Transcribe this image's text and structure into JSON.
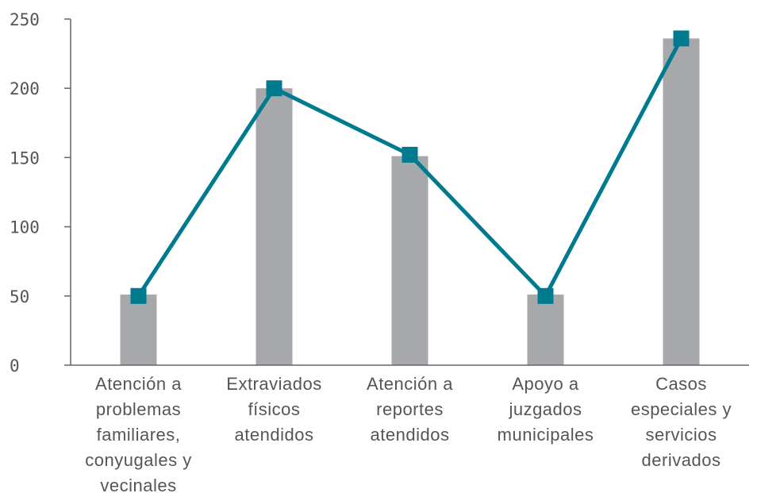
{
  "chart_data": {
    "type": "bar",
    "title": "",
    "xlabel": "",
    "ylabel": "",
    "ylim": [
      0,
      250
    ],
    "yticks": [
      "0",
      "50",
      "100",
      "150",
      "200",
      "250"
    ],
    "categories": [
      [
        "Atención a",
        "problemas",
        "familiares,",
        "conyugales y",
        "vecinales"
      ],
      [
        "Extraviados",
        "físicos",
        "atendidos"
      ],
      [
        "Atención a",
        "reportes",
        "atendidos"
      ],
      [
        "Apoyo a",
        "juzgados",
        "municipales"
      ],
      [
        "Casos",
        "especiales y",
        "servicios",
        "derivados"
      ]
    ],
    "series": [
      {
        "type": "bar",
        "values": [
          51,
          200,
          151,
          51,
          236
        ],
        "color": "#a7a8ab"
      },
      {
        "type": "line",
        "values": [
          50,
          200,
          152,
          50,
          236
        ],
        "color": "#007a8f",
        "marker": "square"
      }
    ],
    "grid": false,
    "legend": "none"
  }
}
